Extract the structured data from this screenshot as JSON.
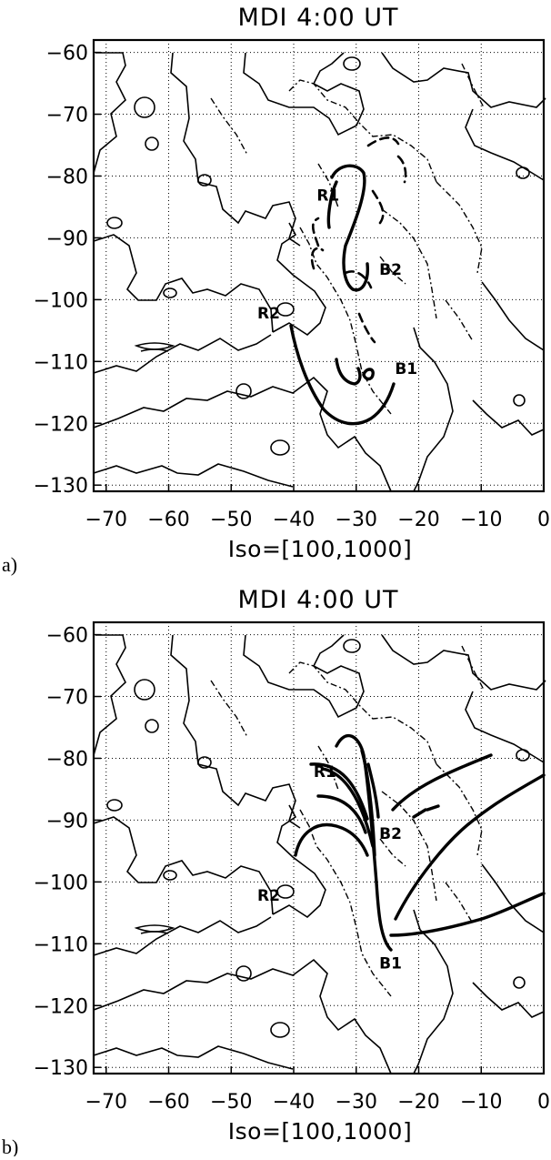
{
  "chart_data": [
    {
      "panel": "a)",
      "type": "contour",
      "title": "MDI 4:00 UT",
      "xlabel": "Iso=[100,1000]",
      "xlim": [
        -72,
        0
      ],
      "ylim": [
        -131,
        -58
      ],
      "x_ticks": [
        -70,
        -60,
        -50,
        -40,
        -30,
        -20,
        -10,
        0
      ],
      "y_ticks": [
        -60,
        -70,
        -80,
        -90,
        -100,
        -110,
        -120,
        -130
      ],
      "grid": true,
      "regions": [
        {
          "label": "R1",
          "x": -34.5,
          "y": -84
        },
        {
          "label": "B2",
          "x": -24.5,
          "y": -96
        },
        {
          "label": "R2",
          "x": -44,
          "y": -103
        },
        {
          "label": "B1",
          "x": -22,
          "y": -112
        }
      ]
    },
    {
      "panel": "b)",
      "type": "contour",
      "title": "MDI 4:00 UT",
      "xlabel": "Iso=[100,1000]",
      "xlim": [
        -72,
        0
      ],
      "ylim": [
        -131,
        -58
      ],
      "x_ticks": [
        -70,
        -60,
        -50,
        -40,
        -30,
        -20,
        -10,
        0
      ],
      "y_ticks": [
        -60,
        -70,
        -80,
        -90,
        -100,
        -110,
        -120,
        -130
      ],
      "grid": true,
      "regions": [
        {
          "label": "R1",
          "x": -35,
          "y": -83
        },
        {
          "label": "B2",
          "x": -24.5,
          "y": -93
        },
        {
          "label": "R2",
          "x": -44,
          "y": -103
        },
        {
          "label": "B1",
          "x": -24.5,
          "y": -114
        }
      ]
    }
  ]
}
